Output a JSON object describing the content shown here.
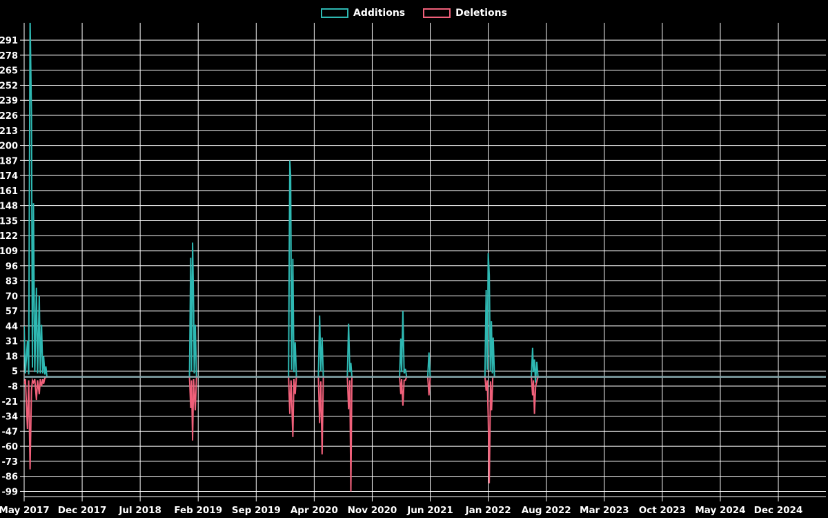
{
  "legend": {
    "items": [
      {
        "label": "Additions",
        "color": "#2eb8b2"
      },
      {
        "label": "Deletions",
        "color": "#f0607a"
      }
    ]
  },
  "chart_data": {
    "type": "line",
    "title": "",
    "xlabel": "",
    "ylabel": "",
    "background": "#000000",
    "grid": true,
    "grid_color": "#ffffff",
    "axis_color": "#ffffff",
    "tick_label_color": "#ffffff",
    "baseline_color": "#84a6ab",
    "legend_position": "top-center",
    "y_axis": {
      "min": -99,
      "max": 291,
      "step": 13,
      "ticks": [
        291,
        278,
        265,
        252,
        239,
        226,
        213,
        200,
        187,
        174,
        161,
        148,
        135,
        122,
        109,
        96,
        83,
        70,
        57,
        44,
        31,
        18,
        5,
        -8,
        -21,
        -34,
        -47,
        -60,
        -73,
        -86,
        -99
      ]
    },
    "x_axis": {
      "tick_labels": [
        "May 2017",
        "Dec 2017",
        "Jul 2018",
        "Feb 2019",
        "Sep 2019",
        "Apr 2020",
        "Nov 2020",
        "Jun 2021",
        "Jan 2022",
        "Aug 2022",
        "Mar 2023",
        "Oct 2023",
        "May 2024",
        "Dec 2024"
      ],
      "tick_month_offsets": [
        0,
        7,
        14,
        21,
        28,
        35,
        42,
        49,
        56,
        63,
        70,
        77,
        84,
        91
      ],
      "x_unit": "months since May 2017"
    },
    "series": [
      {
        "name": "Additions",
        "color": "#2eb8b2",
        "points": [
          [
            0.0,
            44
          ],
          [
            0.15,
            3
          ],
          [
            0.4,
            31
          ],
          [
            0.55,
            2
          ],
          [
            0.72,
            310
          ],
          [
            0.88,
            226
          ],
          [
            1.0,
            8
          ],
          [
            1.12,
            150
          ],
          [
            1.28,
            4
          ],
          [
            1.48,
            77
          ],
          [
            1.62,
            3
          ],
          [
            1.82,
            70
          ],
          [
            1.95,
            3
          ],
          [
            2.1,
            45
          ],
          [
            2.25,
            3
          ],
          [
            2.35,
            18
          ],
          [
            2.5,
            2
          ],
          [
            2.62,
            9
          ],
          [
            2.75,
            0
          ],
          [
            19.95,
            0
          ],
          [
            20.1,
            103
          ],
          [
            20.2,
            5
          ],
          [
            20.32,
            116
          ],
          [
            20.45,
            60
          ],
          [
            20.52,
            3
          ],
          [
            20.65,
            45
          ],
          [
            20.8,
            0
          ],
          [
            31.9,
            0
          ],
          [
            32.05,
            187
          ],
          [
            32.15,
            174
          ],
          [
            32.28,
            6
          ],
          [
            32.42,
            102
          ],
          [
            32.55,
            4
          ],
          [
            32.7,
            30
          ],
          [
            32.85,
            0
          ],
          [
            35.5,
            0
          ],
          [
            35.65,
            53
          ],
          [
            35.8,
            5
          ],
          [
            35.95,
            34
          ],
          [
            36.1,
            0
          ],
          [
            39.0,
            0
          ],
          [
            39.15,
            46
          ],
          [
            39.3,
            4
          ],
          [
            39.42,
            12
          ],
          [
            39.55,
            0
          ],
          [
            45.3,
            0
          ],
          [
            45.45,
            33
          ],
          [
            45.55,
            4
          ],
          [
            45.7,
            57
          ],
          [
            45.85,
            3
          ],
          [
            46.0,
            7
          ],
          [
            46.15,
            0
          ],
          [
            48.7,
            0
          ],
          [
            48.85,
            21
          ],
          [
            49.0,
            0
          ],
          [
            55.6,
            0
          ],
          [
            55.75,
            75
          ],
          [
            55.88,
            6
          ],
          [
            56.0,
            107
          ],
          [
            56.12,
            88
          ],
          [
            56.25,
            5
          ],
          [
            56.38,
            48
          ],
          [
            56.5,
            3
          ],
          [
            56.6,
            34
          ],
          [
            56.75,
            0
          ],
          [
            61.2,
            0
          ],
          [
            61.35,
            25
          ],
          [
            61.45,
            4
          ],
          [
            61.58,
            15
          ],
          [
            61.7,
            -5
          ],
          [
            61.85,
            13
          ],
          [
            62.0,
            0
          ],
          [
            96.7,
            0
          ]
        ]
      },
      {
        "name": "Deletions",
        "color": "#f0607a",
        "points": [
          [
            0.0,
            -6
          ],
          [
            0.15,
            -2
          ],
          [
            0.4,
            -45
          ],
          [
            0.55,
            -3
          ],
          [
            0.72,
            -80
          ],
          [
            0.88,
            -12
          ],
          [
            1.0,
            -3
          ],
          [
            1.12,
            -5
          ],
          [
            1.28,
            -2
          ],
          [
            1.48,
            -20
          ],
          [
            1.62,
            -3
          ],
          [
            1.82,
            -15
          ],
          [
            1.95,
            -2
          ],
          [
            2.1,
            -8
          ],
          [
            2.25,
            -2
          ],
          [
            2.35,
            -6
          ],
          [
            2.5,
            -1
          ],
          [
            2.75,
            0
          ],
          [
            19.95,
            0
          ],
          [
            20.1,
            -27
          ],
          [
            20.2,
            -3
          ],
          [
            20.32,
            -55
          ],
          [
            20.45,
            -2
          ],
          [
            20.65,
            -29
          ],
          [
            20.8,
            0
          ],
          [
            31.9,
            0
          ],
          [
            32.05,
            -32
          ],
          [
            32.2,
            -3
          ],
          [
            32.42,
            -52
          ],
          [
            32.55,
            -2
          ],
          [
            32.7,
            -15
          ],
          [
            32.85,
            0
          ],
          [
            35.5,
            0
          ],
          [
            35.65,
            -40
          ],
          [
            35.8,
            -4
          ],
          [
            35.95,
            -67
          ],
          [
            36.1,
            0
          ],
          [
            39.0,
            0
          ],
          [
            39.15,
            -28
          ],
          [
            39.3,
            -3
          ],
          [
            39.42,
            -99
          ],
          [
            39.55,
            0
          ],
          [
            45.3,
            0
          ],
          [
            45.45,
            -15
          ],
          [
            45.55,
            -2
          ],
          [
            45.7,
            -25
          ],
          [
            45.85,
            -3
          ],
          [
            46.0,
            -3
          ],
          [
            46.15,
            0
          ],
          [
            48.7,
            0
          ],
          [
            48.85,
            -16
          ],
          [
            49.0,
            0
          ],
          [
            55.6,
            0
          ],
          [
            55.75,
            -12
          ],
          [
            55.88,
            -3
          ],
          [
            56.0,
            -35
          ],
          [
            56.12,
            -92
          ],
          [
            56.28,
            -4
          ],
          [
            56.4,
            -29
          ],
          [
            56.55,
            0
          ],
          [
            61.2,
            0
          ],
          [
            61.35,
            -16
          ],
          [
            61.45,
            -3
          ],
          [
            61.58,
            -32
          ],
          [
            61.72,
            -8
          ],
          [
            62.0,
            0
          ],
          [
            96.7,
            0
          ]
        ]
      }
    ]
  }
}
